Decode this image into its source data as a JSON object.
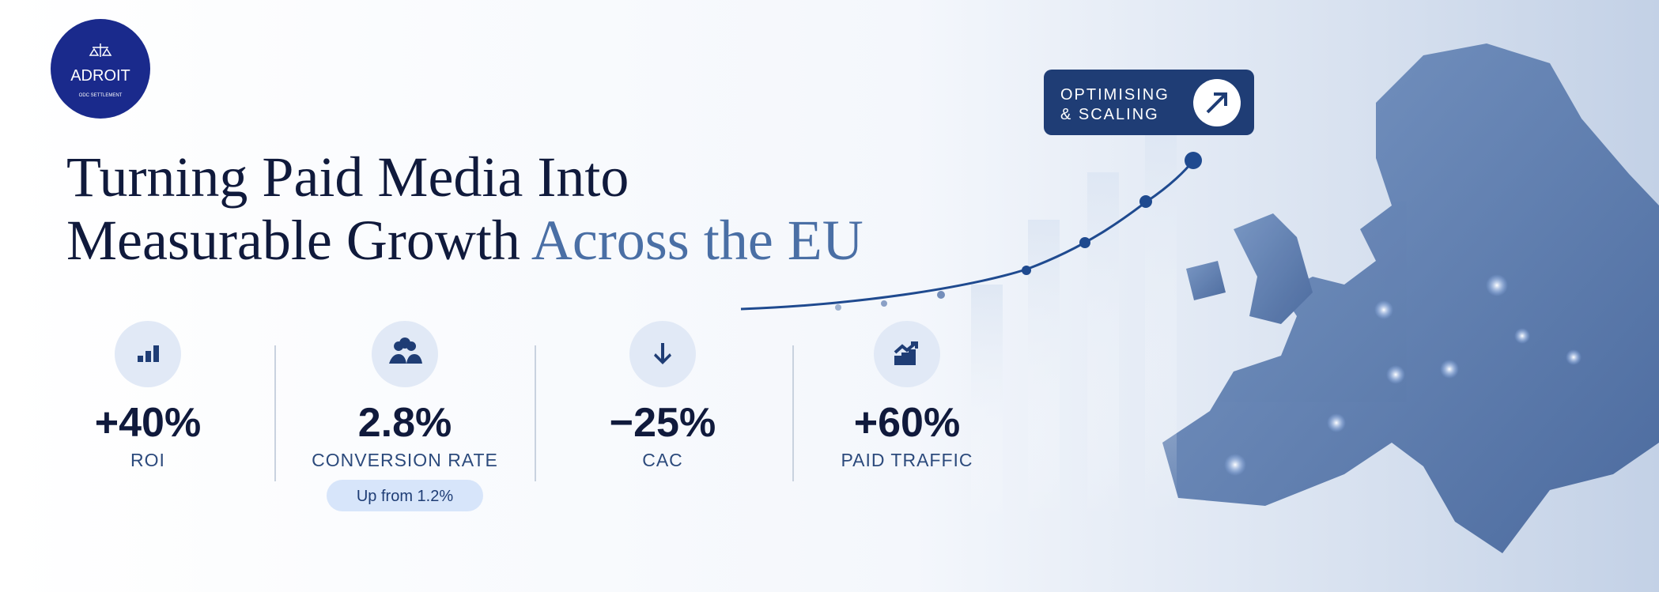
{
  "logo": {
    "name": "ADROIT",
    "tagline": "ODC SETTLEMENT"
  },
  "headline": {
    "line1": "Turning Paid Media Into",
    "line2": "Measurable Growth",
    "accent": "Across the EU"
  },
  "badge": {
    "line1": "OPTIMISING",
    "line2": "& SCALING"
  },
  "stats": [
    {
      "value": "+40%",
      "label": "ROI"
    },
    {
      "value": "2.8%",
      "label": "CONVERSION RATE",
      "note": "Up from 1.2%"
    },
    {
      "value": "−25%",
      "label": "CAC"
    },
    {
      "value": "+60%",
      "label": "PAID TRAFFIC"
    }
  ]
}
